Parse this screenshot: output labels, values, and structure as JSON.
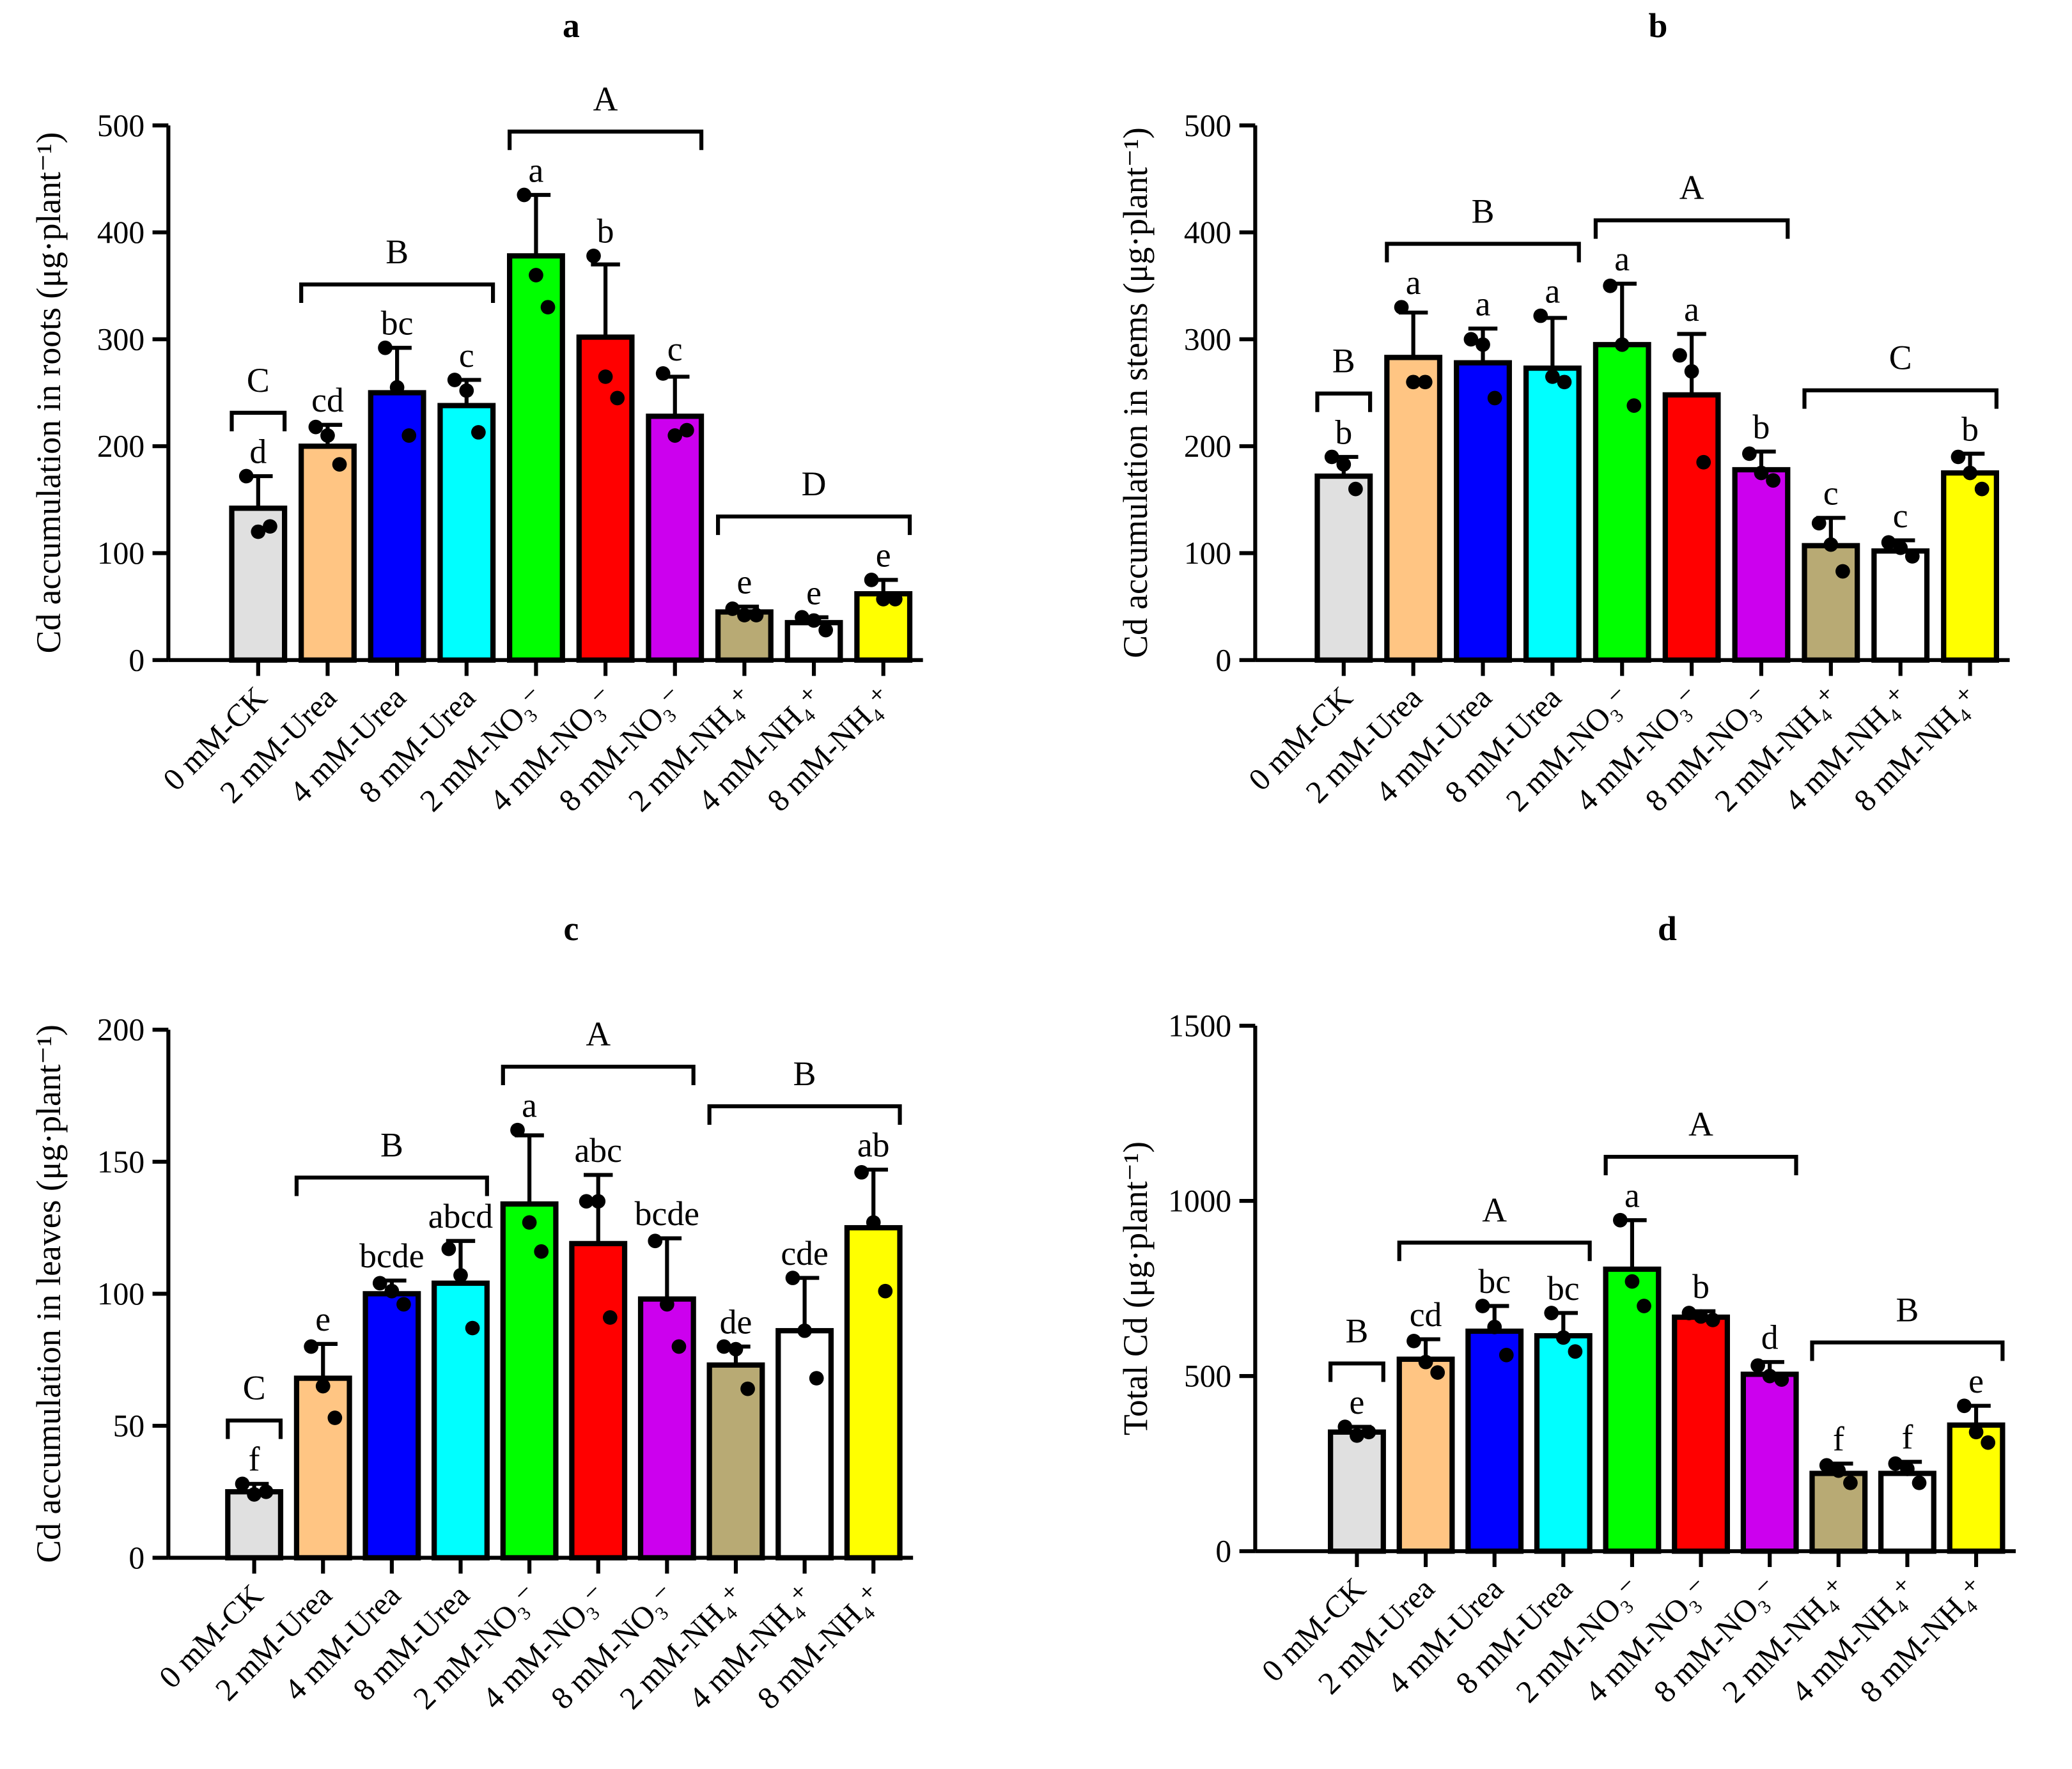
{
  "chart_data": [
    {
      "panel": "a",
      "type": "bar",
      "title": "a",
      "ylabel": "Cd accumulation in roots (μg·plant⁻¹)",
      "ylim": [
        0,
        500
      ],
      "yticks": [
        0,
        100,
        200,
        300,
        400,
        500
      ],
      "categories": [
        "0 mM-CK",
        "2 mM-Urea",
        "4 mM-Urea",
        "8 mM-Urea",
        "2 mM-NO₃⁻",
        "4 mM-NO₃⁻",
        "8 mM-NO₃⁻",
        "2 mM-NH₄⁺",
        "4 mM-NH₄⁺",
        "8 mM-NH₄⁺"
      ],
      "values": [
        142,
        200,
        250,
        238,
        378,
        302,
        228,
        45,
        35,
        62
      ],
      "errors": [
        30,
        20,
        42,
        24,
        57,
        68,
        37,
        5,
        5,
        13
      ],
      "points": [
        [
          172,
          120,
          125
        ],
        [
          218,
          210,
          183
        ],
        [
          292,
          255,
          210
        ],
        [
          262,
          252,
          213
        ],
        [
          435,
          360,
          330
        ],
        [
          378,
          265,
          245
        ],
        [
          268,
          210,
          215
        ],
        [
          48,
          42,
          42
        ],
        [
          40,
          37,
          28
        ],
        [
          75,
          57,
          57
        ]
      ],
      "letters": [
        "d",
        "cd",
        "bc",
        "c",
        "a",
        "b",
        "c",
        "e",
        "e",
        "e"
      ],
      "groups": [
        {
          "label": "C",
          "from": 0,
          "to": 0
        },
        {
          "label": "B",
          "from": 1,
          "to": 3
        },
        {
          "label": "A",
          "from": 4,
          "to": 6
        },
        {
          "label": "D",
          "from": 7,
          "to": 9
        }
      ]
    },
    {
      "panel": "b",
      "type": "bar",
      "title": "b",
      "ylabel": "Cd accumulation in stems (μg·plant⁻¹)",
      "ylim": [
        0,
        500
      ],
      "yticks": [
        0,
        100,
        200,
        300,
        400,
        500
      ],
      "categories": [
        "0 mM-CK",
        "2 mM-Urea",
        "4 mM-Urea",
        "8 mM-Urea",
        "2 mM-NO₃⁻",
        "4 mM-NO₃⁻",
        "8 mM-NO₃⁻",
        "2 mM-NH₄⁺",
        "4 mM-NH₄⁺",
        "8 mM-NH₄⁺"
      ],
      "values": [
        172,
        283,
        278,
        273,
        295,
        248,
        178,
        107,
        102,
        175
      ],
      "errors": [
        18,
        42,
        32,
        47,
        57,
        57,
        17,
        26,
        10,
        18
      ],
      "points": [
        [
          190,
          183,
          160
        ],
        [
          330,
          260,
          260
        ],
        [
          300,
          295,
          245
        ],
        [
          322,
          265,
          260
        ],
        [
          350,
          295,
          238
        ],
        [
          285,
          270,
          185
        ],
        [
          193,
          175,
          168
        ],
        [
          128,
          108,
          83
        ],
        [
          110,
          105,
          97
        ],
        [
          190,
          175,
          160
        ]
      ],
      "letters": [
        "b",
        "a",
        "a",
        "a",
        "a",
        "a",
        "b",
        "c",
        "c",
        "b"
      ],
      "groups": [
        {
          "label": "B",
          "from": 0,
          "to": 0
        },
        {
          "label": "B",
          "from": 1,
          "to": 3
        },
        {
          "label": "A",
          "from": 4,
          "to": 6
        },
        {
          "label": "C",
          "from": 7,
          "to": 9
        }
      ]
    },
    {
      "panel": "c",
      "type": "bar",
      "title": "c",
      "ylabel": "Cd accumulation in leaves (μg·plant⁻¹)",
      "ylim": [
        0,
        200
      ],
      "yticks": [
        0,
        50,
        100,
        150,
        200
      ],
      "categories": [
        "0 mM-CK",
        "2 mM-Urea",
        "4 mM-Urea",
        "8 mM-Urea",
        "2 mM-NO₃⁻",
        "4 mM-NO₃⁻",
        "8 mM-NO₃⁻",
        "2 mM-NH₄⁺",
        "4 mM-NH₄⁺",
        "8 mM-NH₄⁺"
      ],
      "values": [
        25,
        68,
        100,
        104,
        134,
        119,
        98,
        73,
        86,
        125
      ],
      "errors": [
        3,
        13,
        5,
        16,
        26,
        26,
        23,
        7,
        20,
        22
      ],
      "points": [
        [
          28,
          24,
          25
        ],
        [
          80,
          65,
          53
        ],
        [
          104,
          101,
          96
        ],
        [
          117,
          107,
          87
        ],
        [
          162,
          127,
          116
        ],
        [
          135,
          135,
          91
        ],
        [
          120,
          96,
          80
        ],
        [
          80,
          79,
          64
        ],
        [
          106,
          86,
          68
        ],
        [
          146,
          127,
          101
        ]
      ],
      "letters": [
        "f",
        "e",
        "bcde",
        "abcd",
        "a",
        "abc",
        "bcde",
        "de",
        "cde",
        "ab"
      ],
      "groups": [
        {
          "label": "C",
          "from": 0,
          "to": 0
        },
        {
          "label": "B",
          "from": 1,
          "to": 3
        },
        {
          "label": "A",
          "from": 4,
          "to": 6
        },
        {
          "label": "B",
          "from": 7,
          "to": 9
        }
      ]
    },
    {
      "panel": "d",
      "type": "bar",
      "title": "d",
      "ylabel": "Total Cd (μg·plant⁻¹)",
      "ylim": [
        0,
        1500
      ],
      "yticks": [
        0,
        500,
        1000,
        1500
      ],
      "categories": [
        "0 mM-CK",
        "2 mM-Urea",
        "4 mM-Urea",
        "8 mM-Urea",
        "2 mM-NO₃⁻",
        "4 mM-NO₃⁻",
        "8 mM-NO₃⁻",
        "2 mM-NH₄⁺",
        "4 mM-NH₄⁺",
        "8 mM-NH₄⁺"
      ],
      "values": [
        340,
        548,
        628,
        615,
        805,
        668,
        505,
        222,
        222,
        360
      ],
      "errors": [
        15,
        57,
        72,
        65,
        140,
        17,
        35,
        28,
        33,
        55
      ],
      "points": [
        [
          355,
          330,
          340
        ],
        [
          600,
          540,
          510
        ],
        [
          700,
          640,
          560
        ],
        [
          680,
          610,
          570
        ],
        [
          945,
          770,
          700
        ],
        [
          680,
          670,
          660
        ],
        [
          530,
          500,
          490
        ],
        [
          245,
          230,
          195
        ],
        [
          250,
          235,
          195
        ],
        [
          415,
          340,
          310
        ]
      ],
      "letters": [
        "e",
        "cd",
        "bc",
        "bc",
        "a",
        "b",
        "d",
        "f",
        "f",
        "e"
      ],
      "groups": [
        {
          "label": "B",
          "from": 0,
          "to": 0
        },
        {
          "label": "A",
          "from": 1,
          "to": 3
        },
        {
          "label": "A",
          "from": 4,
          "to": 6
        },
        {
          "label": "B",
          "from": 7,
          "to": 9
        }
      ]
    }
  ],
  "colors": [
    "#e0e0e0",
    "#ffc583",
    "#0000ff",
    "#00ffff",
    "#00ff00",
    "#ff0000",
    "#cc00ee",
    "#b8aa74",
    "#ffffff",
    "#ffff00"
  ]
}
